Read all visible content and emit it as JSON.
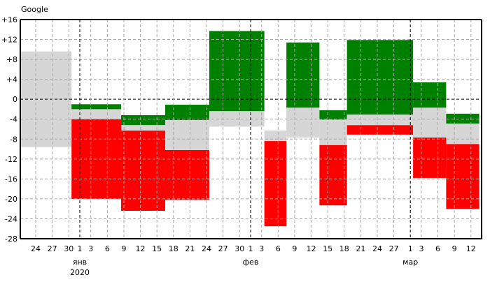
{
  "chart_data": {
    "type": "bar",
    "title": "Google",
    "ylim": [
      -28,
      16
    ],
    "yticks": [
      "+16",
      "+12",
      "+8",
      "+4",
      "0",
      "-4",
      "-8",
      "-12",
      "-16",
      "-20",
      "-24",
      "-28"
    ],
    "ytick_values": [
      16,
      12,
      8,
      4,
      0,
      -4,
      -8,
      -12,
      -16,
      -20,
      -24,
      -28
    ],
    "xlim": [
      "2019-12-21",
      "2020-03-13"
    ],
    "grid": true,
    "colors": {
      "up": "#008000",
      "down": "#ff0000",
      "range": "#d6d6d6",
      "grid": "#a8a8a8",
      "zero_line": "#000000"
    },
    "xticks": [
      {
        "date": "2019-12-24",
        "label": "24"
      },
      {
        "date": "2019-12-27",
        "label": "27"
      },
      {
        "date": "2019-12-30",
        "label": "30"
      },
      {
        "date": "2020-01-01",
        "label": "1",
        "month_start": true
      },
      {
        "date": "2020-01-03",
        "label": "3"
      },
      {
        "date": "2020-01-06",
        "label": "6"
      },
      {
        "date": "2020-01-09",
        "label": "9"
      },
      {
        "date": "2020-01-12",
        "label": "12"
      },
      {
        "date": "2020-01-15",
        "label": "15"
      },
      {
        "date": "2020-01-18",
        "label": "18"
      },
      {
        "date": "2020-01-21",
        "label": "21"
      },
      {
        "date": "2020-01-24",
        "label": "24"
      },
      {
        "date": "2020-01-27",
        "label": "27"
      },
      {
        "date": "2020-01-30",
        "label": "30"
      },
      {
        "date": "2020-02-01",
        "label": "1",
        "month_start": true
      },
      {
        "date": "2020-02-03",
        "label": "3"
      },
      {
        "date": "2020-02-06",
        "label": "6"
      },
      {
        "date": "2020-02-09",
        "label": "9"
      },
      {
        "date": "2020-02-12",
        "label": "12"
      },
      {
        "date": "2020-02-15",
        "label": "15"
      },
      {
        "date": "2020-02-18",
        "label": "18"
      },
      {
        "date": "2020-02-21",
        "label": "21"
      },
      {
        "date": "2020-02-24",
        "label": "24"
      },
      {
        "date": "2020-02-27",
        "label": "27"
      },
      {
        "date": "2020-03-01",
        "label": "1",
        "month_start": true
      },
      {
        "date": "2020-03-03",
        "label": "3"
      },
      {
        "date": "2020-03-06",
        "label": "6"
      },
      {
        "date": "2020-03-09",
        "label": "9"
      },
      {
        "date": "2020-03-12",
        "label": "12"
      }
    ],
    "months": [
      {
        "date": "2020-01-01",
        "label": "янв",
        "year": "2020"
      },
      {
        "date": "2020-02-01",
        "label": "фев"
      },
      {
        "date": "2020-03-01",
        "label": "мар"
      }
    ],
    "bars": [
      {
        "start": "2019-12-21",
        "end": "2019-12-30",
        "segments": [
          {
            "kind": "range",
            "top": 9.6,
            "bottom": -9.6
          }
        ]
      },
      {
        "start": "2019-12-31",
        "end": "2020-01-08",
        "segments": [
          {
            "kind": "up",
            "top": -1.0,
            "bottom": -2.0
          },
          {
            "kind": "range",
            "top": -2.0,
            "bottom": -4.0
          },
          {
            "kind": "down",
            "top": -4.0,
            "bottom": -20.0
          }
        ]
      },
      {
        "start": "2020-01-09",
        "end": "2020-01-16",
        "segments": [
          {
            "kind": "up",
            "top": -3.2,
            "bottom": -5.2
          },
          {
            "kind": "range",
            "top": -5.2,
            "bottom": -6.3
          },
          {
            "kind": "down",
            "top": -6.3,
            "bottom": -22.4
          }
        ]
      },
      {
        "start": "2020-01-17",
        "end": "2020-01-24",
        "segments": [
          {
            "kind": "up",
            "top": -1.1,
            "bottom": -4.2
          },
          {
            "kind": "range",
            "top": -4.2,
            "bottom": -10.2
          },
          {
            "kind": "down",
            "top": -10.2,
            "bottom": -20.2
          }
        ]
      },
      {
        "start": "2020-01-25",
        "end": "2020-02-03",
        "segments": [
          {
            "kind": "up",
            "top": 13.7,
            "bottom": -2.4
          },
          {
            "kind": "range",
            "top": -2.4,
            "bottom": -5.5
          }
        ]
      },
      {
        "start": "2020-02-04",
        "end": "2020-02-07",
        "segments": [
          {
            "kind": "range",
            "top": -6.3,
            "bottom": -8.4
          },
          {
            "kind": "down",
            "top": -8.4,
            "bottom": -25.5
          }
        ]
      },
      {
        "start": "2020-02-08",
        "end": "2020-02-13",
        "segments": [
          {
            "kind": "up",
            "top": 11.4,
            "bottom": -1.7
          },
          {
            "kind": "range",
            "top": -1.7,
            "bottom": -7.7
          }
        ]
      },
      {
        "start": "2020-02-14",
        "end": "2020-02-18",
        "segments": [
          {
            "kind": "up",
            "top": -2.2,
            "bottom": -4.1
          },
          {
            "kind": "range",
            "top": -4.1,
            "bottom": -9.2
          },
          {
            "kind": "down",
            "top": -9.2,
            "bottom": -21.3
          }
        ]
      },
      {
        "start": "2020-02-19",
        "end": "2020-03-01",
        "segments": [
          {
            "kind": "up",
            "top": 11.9,
            "bottom": -3.1
          },
          {
            "kind": "range",
            "top": -3.1,
            "bottom": -5.2
          },
          {
            "kind": "down",
            "top": -5.2,
            "bottom": -7.1
          }
        ]
      },
      {
        "start": "2020-03-02",
        "end": "2020-03-07",
        "segments": [
          {
            "kind": "up",
            "top": 3.4,
            "bottom": -1.7
          },
          {
            "kind": "range",
            "top": -1.7,
            "bottom": -7.7
          },
          {
            "kind": "down",
            "top": -7.7,
            "bottom": -15.8
          }
        ]
      },
      {
        "start": "2020-03-08",
        "end": "2020-03-13",
        "segments": [
          {
            "kind": "up",
            "top": -2.9,
            "bottom": -4.9
          },
          {
            "kind": "range",
            "top": -4.9,
            "bottom": -9.0
          },
          {
            "kind": "down",
            "top": -9.0,
            "bottom": -22.0
          }
        ]
      }
    ]
  }
}
